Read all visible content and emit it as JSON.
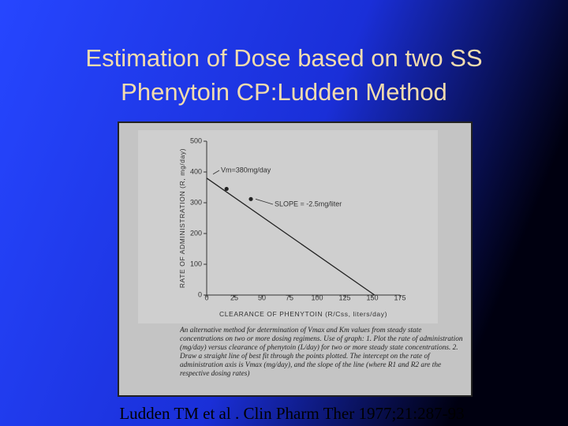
{
  "slide": {
    "title": [
      "Estimation of Dose based on two SS",
      "Phenytoin CP:Ludden Method"
    ],
    "citation": "Ludden TM et al . Clin Pharm Ther 1977;21:287-93"
  },
  "chart_data": {
    "type": "scatter",
    "x_label": "CLEARANCE OF PHENYTOIN (R/Css, liters/day)",
    "y_label": "RATE OF ADMINISTRATION (R, mg/day)",
    "x": [
      18,
      40
    ],
    "values": [
      345,
      312
    ],
    "fit_line": {
      "x": [
        0,
        152
      ],
      "values": [
        380,
        0
      ]
    },
    "annotations": [
      "Vm=380mg/day",
      "SLOPE = -2.5mg/liter"
    ],
    "caption": "An alternative method for determination of Vmax and Km values from steady state concentrations on two or more dosing regimens. Use of graph: 1. Plot the rate of administration (mg/day) versus clearance of phenytoin (L/day) for two or more steady state concentrations. 2. Draw a straight line of best fit through the points plotted. The intercept on the rate of administration axis is Vmax (mg/day), and the slope of the line (where R1 and R2 are the respective dosing rates)",
    "xlim": [
      0,
      175
    ],
    "xticks": [
      0,
      25,
      50,
      75,
      100,
      125,
      150,
      175
    ],
    "ylim": [
      0,
      500
    ],
    "yticks": [
      0,
      100,
      200,
      300,
      400,
      500
    ],
    "color": "#222222"
  }
}
